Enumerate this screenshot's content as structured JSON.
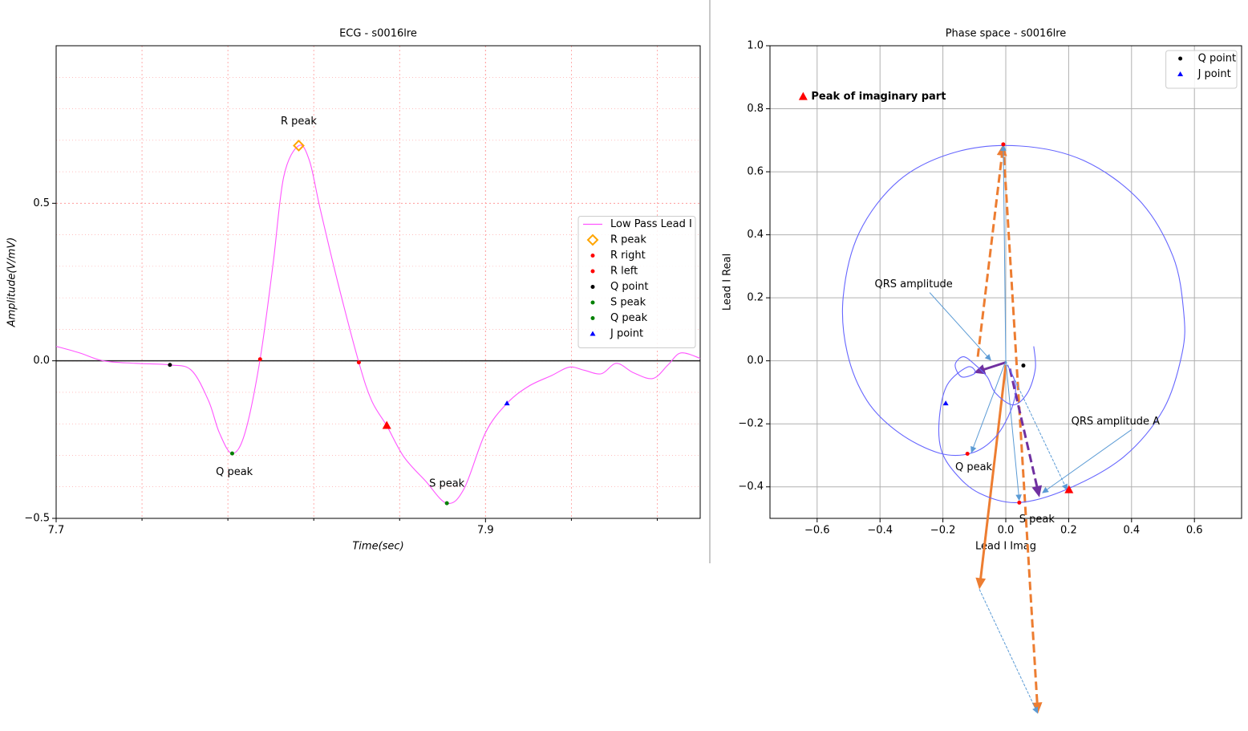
{
  "chart_data": [
    {
      "type": "line",
      "title": "ECG - s0016lre",
      "xlabel": "Time(sec)",
      "ylabel": "Amplitude(V/mV)",
      "xlim": [
        7.7,
        8.0
      ],
      "ylim": [
        -0.5,
        1.0
      ],
      "xticks": [
        7.7,
        7.9
      ],
      "yticks": [
        {
          "value": -0.5,
          "label": "−0.5"
        },
        {
          "value": 0,
          "label": "0.0"
        },
        0.5
      ],
      "minor_xticks": [
        7.74,
        7.78,
        7.82,
        7.86,
        7.94,
        7.98
      ],
      "minor_yticks": [
        -0.4,
        -0.3,
        -0.2,
        -0.1,
        0.1,
        0.2,
        0.3,
        0.4,
        0.6,
        0.7,
        0.8,
        0.9
      ],
      "grid": true,
      "grid_color": "#ff9999",
      "axhline": 0,
      "legend": "center right",
      "series": [
        {
          "name": "Low Pass Lead I",
          "color": "#ff55ff",
          "x": [
            7.7,
            7.711,
            7.722,
            7.737,
            7.753,
            7.763,
            7.771,
            7.776,
            7.782,
            7.788,
            7.795,
            7.801,
            7.806,
            7.813,
            7.818,
            7.823,
            7.831,
            7.841,
            7.847,
            7.854,
            7.862,
            7.872,
            7.882,
            7.89,
            7.9,
            7.91,
            7.92,
            7.931,
            7.939,
            7.946,
            7.954,
            7.961,
            7.969,
            7.978,
            7.985,
            7.991,
            8.0
          ],
          "values": [
            0.046,
            0.025,
            0.0,
            -0.008,
            -0.013,
            -0.03,
            -0.127,
            -0.228,
            -0.294,
            -0.228,
            0.005,
            0.305,
            0.584,
            0.683,
            0.635,
            0.482,
            0.254,
            -0.005,
            -0.127,
            -0.206,
            -0.305,
            -0.381,
            -0.452,
            -0.406,
            -0.228,
            -0.135,
            -0.081,
            -0.046,
            -0.02,
            -0.03,
            -0.041,
            -0.008,
            -0.038,
            -0.056,
            -0.013,
            0.025,
            0.008
          ]
        },
        {
          "name": "R peak",
          "color": "orange",
          "marker": "diamond",
          "x": [
            7.813
          ],
          "values": [
            0.683
          ]
        },
        {
          "name": "R right",
          "color": "red",
          "marker": "dot",
          "x": [
            7.841
          ],
          "values": [
            -0.005
          ]
        },
        {
          "name": "R left",
          "color": "red",
          "marker": "dot",
          "x": [
            7.795
          ],
          "values": [
            0.005
          ]
        },
        {
          "name": "Q point",
          "color": "black",
          "marker": "dot",
          "x": [
            7.753
          ],
          "values": [
            -0.013
          ]
        },
        {
          "name": "S peak",
          "color": "green",
          "marker": "dot",
          "x": [
            7.882
          ],
          "values": [
            -0.452
          ]
        },
        {
          "name": "Q peak",
          "color": "green",
          "marker": "dot",
          "x": [
            7.782
          ],
          "values": [
            -0.294
          ]
        },
        {
          "name": "J point",
          "color": "blue",
          "marker": "triangle",
          "x": [
            7.91
          ],
          "values": [
            -0.135
          ]
        },
        {
          "color": "red",
          "marker": "bigtriangle",
          "x": [
            7.854
          ],
          "values": [
            -0.206
          ]
        }
      ],
      "annotations": [
        {
          "text": "R peak",
          "x": 7.813,
          "y": 0.759
        },
        {
          "text": "Q peak",
          "x": 7.783,
          "y": -0.353
        },
        {
          "text": "S peak",
          "x": 7.882,
          "y": -0.391
        }
      ]
    },
    {
      "type": "line",
      "title": "Phase space - s0016lre",
      "xlabel": "Lead I Imag",
      "ylabel": "Lead I Real",
      "xlim": [
        -0.75,
        0.75
      ],
      "ylim": [
        -0.5,
        1.0
      ],
      "xticks": [
        {
          "value": -0.6,
          "label": "−0.6"
        },
        {
          "value": -0.4,
          "label": "−0.4"
        },
        {
          "value": -0.2,
          "label": "−0.2"
        },
        {
          "value": 0,
          "label": "0.0"
        },
        0.2,
        0.4,
        0.6
      ],
      "yticks": [
        {
          "value": -0.4,
          "label": "−0.4"
        },
        {
          "value": -0.2,
          "label": "−0.2"
        },
        {
          "value": 0,
          "label": "0.0"
        },
        0.2,
        0.4,
        0.6,
        0.8,
        {
          "value": 1,
          "label": "1.0"
        }
      ],
      "grid": true,
      "grid_color": "#b0b0b0",
      "legend": "upper right",
      "series": [
        {
          "color": "#6666ff",
          "x": [
            0.089,
            0.094,
            0.069,
            0.023,
            -0.033,
            -0.059,
            -0.097,
            -0.135,
            -0.161,
            -0.14,
            -0.097,
            -0.122,
            -0.186,
            -0.211,
            -0.206,
            -0.161,
            -0.084,
            0.038,
            0.196,
            0.375,
            0.502,
            0.561,
            0.566,
            0.532,
            0.425,
            0.247,
            0.043,
            -0.161,
            -0.339,
            -0.466,
            -0.517,
            -0.504,
            -0.441,
            -0.339,
            -0.211,
            -0.11,
            -0.033,
            0.018,
            0.031,
            0.005
          ],
          "values": [
            0.046,
            -0.025,
            -0.102,
            -0.14,
            -0.102,
            -0.051,
            -0.013,
            0.013,
            -0.013,
            -0.051,
            -0.038,
            -0.02,
            -0.076,
            -0.178,
            -0.28,
            -0.356,
            -0.42,
            -0.45,
            -0.407,
            -0.305,
            -0.153,
            0.025,
            0.153,
            0.331,
            0.509,
            0.636,
            0.682,
            0.662,
            0.573,
            0.407,
            0.204,
            0.025,
            -0.127,
            -0.229,
            -0.293,
            -0.293,
            -0.242,
            -0.153,
            -0.076,
            -0.013
          ]
        },
        {
          "name": "Q point",
          "color": "black",
          "marker": "dot",
          "x": [
            0.056
          ],
          "values": [
            -0.015
          ]
        },
        {
          "name": "J point",
          "color": "blue",
          "marker": "triangle",
          "x": [
            -0.191
          ],
          "values": [
            -0.135
          ]
        },
        {
          "color": "red",
          "marker": "dot",
          "x": [
            -0.008,
            -0.122,
            0.043
          ],
          "values": [
            0.687,
            -0.295,
            -0.45
          ]
        },
        {
          "color": "red",
          "marker": "bigtriangle",
          "x": [
            0.201
          ],
          "values": [
            -0.41
          ]
        }
      ],
      "arrows": [
        {
          "from": [
            -0.089,
            0.013
          ],
          "to": [
            -0.008,
            0.687
          ],
          "color": "#ed7d31",
          "width": 3,
          "dashed": true
        },
        {
          "from": [
            -0.008,
            0.687
          ],
          "to": [
            0.102,
            -1.12
          ],
          "color": "#ed7d31",
          "width": 3,
          "dashed": true
        },
        {
          "from": [
            0,
            -0.013
          ],
          "to": [
            -0.084,
            -0.725
          ],
          "color": "#ed7d31",
          "width": 3,
          "dashed": false
        },
        {
          "from": [
            0,
            -0.005
          ],
          "to": [
            -0.102,
            -0.038
          ],
          "color": "#7030a0",
          "width": 3,
          "dashed": false
        },
        {
          "from": [
            0.013,
            -0.025
          ],
          "to": [
            0.107,
            -0.433
          ],
          "color": "#7030a0",
          "width": 3,
          "dashed": true
        },
        {
          "from": [
            0,
            0
          ],
          "to": [
            -0.008,
            0.687
          ],
          "color": "#5b9bd5",
          "width": 1,
          "dashed": false
        },
        {
          "from": [
            0,
            0
          ],
          "to": [
            -0.11,
            -0.293
          ],
          "color": "#5b9bd5",
          "width": 1,
          "dashed": false
        },
        {
          "from": [
            0,
            0
          ],
          "to": [
            0.043,
            -0.445
          ],
          "color": "#5b9bd5",
          "width": 1,
          "dashed": false
        },
        {
          "from": [
            0,
            0
          ],
          "to": [
            0.196,
            -0.412
          ],
          "color": "#5b9bd5",
          "width": 1,
          "dashed": true
        },
        {
          "from": [
            -0.084,
            -0.725
          ],
          "to": [
            0.102,
            -1.12
          ],
          "color": "#5b9bd5",
          "width": 1,
          "dashed": true
        }
      ],
      "annotations": [
        {
          "text": "Peak of imaginary part",
          "x": -0.619,
          "y": 0.838,
          "align": "left",
          "bold": true,
          "marker": "bigtriangle",
          "color": "red"
        },
        {
          "text": "QRS amplitude",
          "x": -0.293,
          "y": 0.242,
          "arrow_to": [
            -0.046,
            0.0
          ],
          "arrow_color": "#5b9bd5"
        },
        {
          "text": "Q peak",
          "x": -0.102,
          "y": -0.338
        },
        {
          "text": "S peak",
          "x": 0.099,
          "y": -0.504
        },
        {
          "text": "QRS amplitude  A",
          "x": 0.349,
          "y": -0.193,
          "arrow_to": [
            0.115,
            -0.42
          ],
          "arrow_color": "#5b9bd5"
        }
      ]
    }
  ]
}
